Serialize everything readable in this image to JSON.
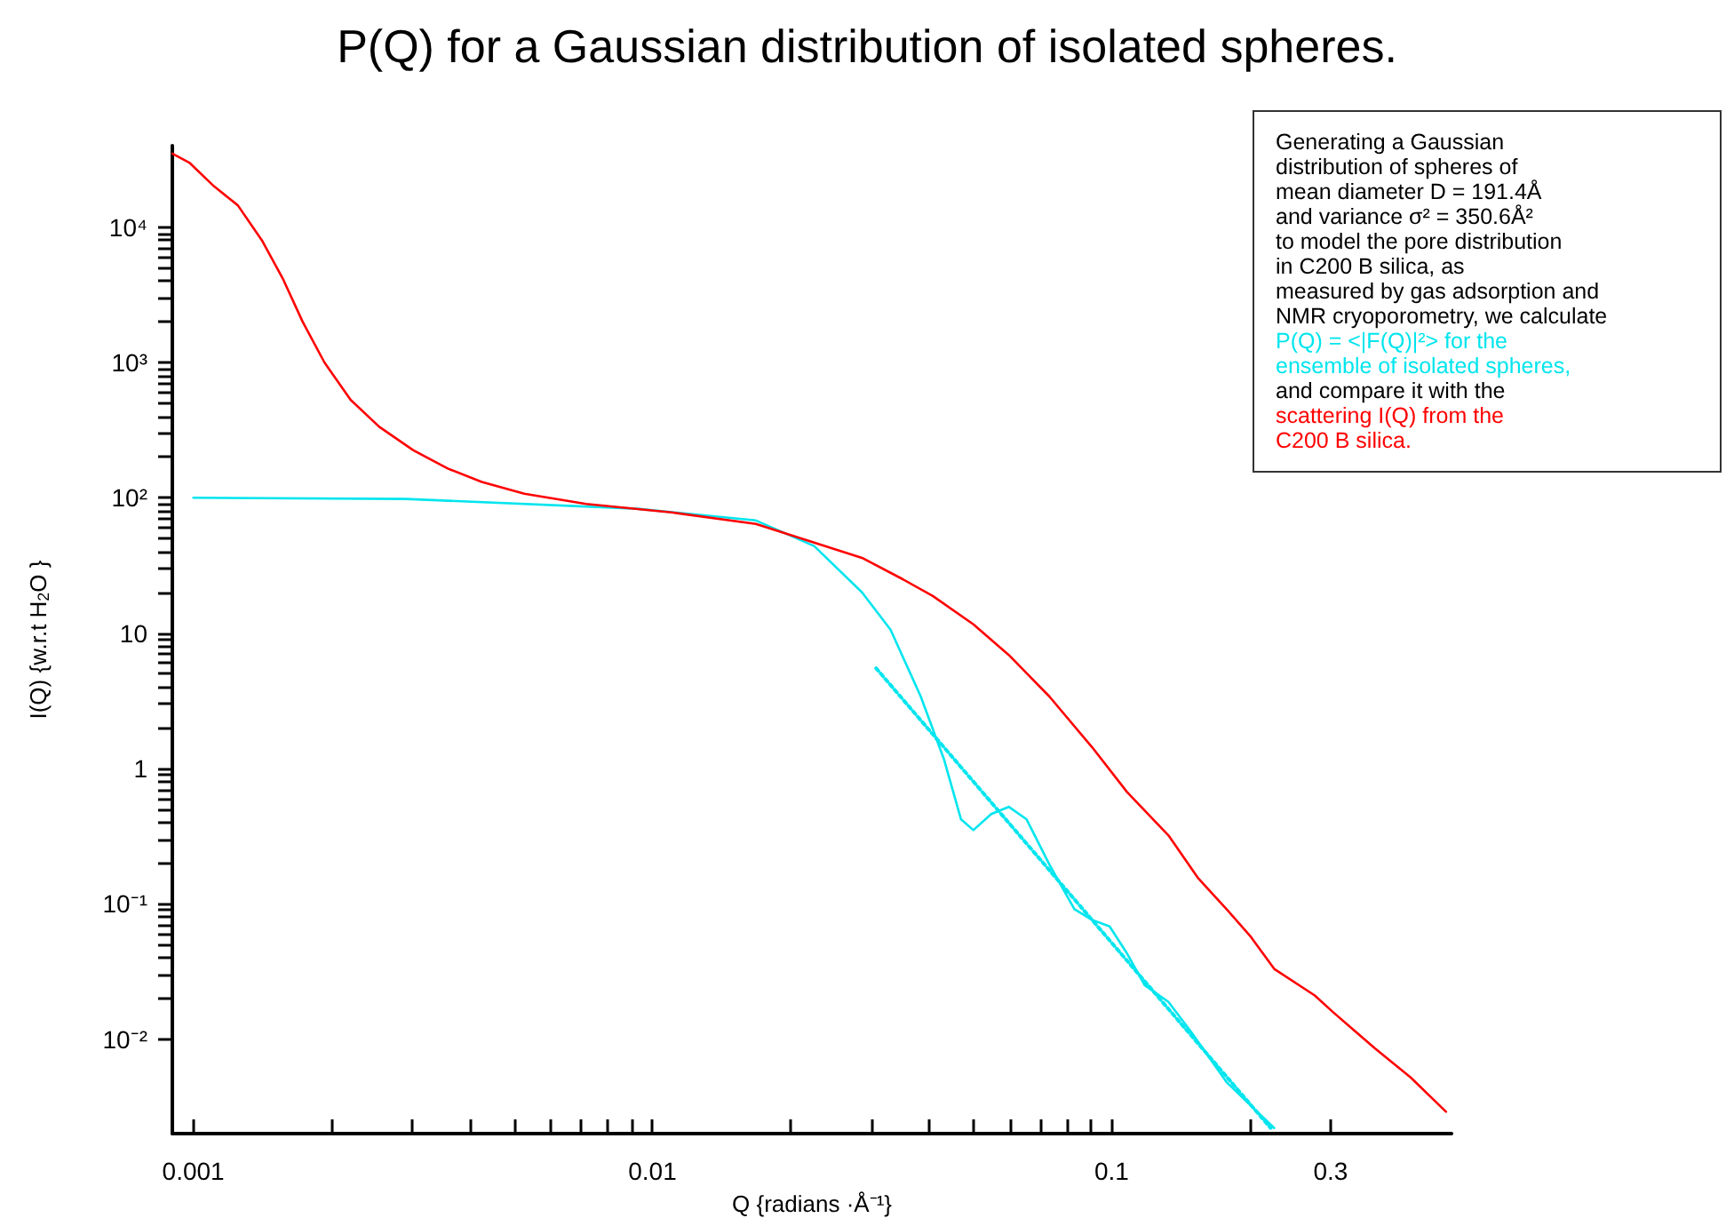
{
  "chart_data": {
    "type": "line",
    "title": "P(Q) for a Gaussian distribution of isolated spheres.",
    "xlabel": "Q {radians ·Å⁻¹}",
    "ylabel": "I(Q) {w.r.t H$_{2}$O }",
    "log": "xy",
    "grid": false,
    "marker": "none",
    "xlim": [
      0.0009,
      0.55
    ],
    "xticks": [
      0.001,
      {
        "value": 0.002,
        "label": null
      },
      {
        "value": 0.003,
        "label": null
      },
      {
        "value": 0.004,
        "label": null
      },
      {
        "value": 0.005,
        "label": null
      },
      {
        "value": 0.006,
        "label": null
      },
      {
        "value": 0.007,
        "label": null
      },
      {
        "value": 0.008,
        "label": null
      },
      {
        "value": 0.009,
        "label": null
      },
      0.01,
      {
        "value": 0.02,
        "label": null
      },
      {
        "value": 0.03,
        "label": null
      },
      {
        "value": 0.04,
        "label": null
      },
      {
        "value": 0.05,
        "label": null
      },
      {
        "value": 0.06,
        "label": null
      },
      {
        "value": 0.07,
        "label": null
      },
      {
        "value": 0.08,
        "label": null
      },
      {
        "value": 0.09,
        "label": null
      },
      0.1,
      {
        "value": 0.2,
        "label": null
      },
      0.3
    ],
    "ylim": [
      0.002,
      40000
    ],
    "yticks": [
      {
        "value": 0.01,
        "label": "10⁻²"
      },
      {
        "value": 0.02,
        "label": null
      },
      {
        "value": 0.03,
        "label": null
      },
      {
        "value": 0.04,
        "label": null
      },
      {
        "value": 0.05,
        "label": null
      },
      {
        "value": 0.06,
        "label": null
      },
      {
        "value": 0.07,
        "label": null
      },
      {
        "value": 0.08,
        "label": null
      },
      {
        "value": 0.09,
        "label": null
      },
      {
        "value": 0.1,
        "label": "10⁻¹"
      },
      {
        "value": 0.2,
        "label": null
      },
      {
        "value": 0.3,
        "label": null
      },
      {
        "value": 0.4,
        "label": null
      },
      {
        "value": 0.5,
        "label": null
      },
      {
        "value": 0.6,
        "label": null
      },
      {
        "value": 0.7,
        "label": null
      },
      {
        "value": 0.8,
        "label": null
      },
      {
        "value": 0.9,
        "label": null
      },
      1,
      {
        "value": 2,
        "label": null
      },
      {
        "value": 3,
        "label": null
      },
      {
        "value": 4,
        "label": null
      },
      {
        "value": 5,
        "label": null
      },
      {
        "value": 6,
        "label": null
      },
      {
        "value": 7,
        "label": null
      },
      {
        "value": 8,
        "label": null
      },
      {
        "value": 9,
        "label": null
      },
      10,
      {
        "value": 20,
        "label": null
      },
      {
        "value": 30,
        "label": null
      },
      {
        "value": 40,
        "label": null
      },
      {
        "value": 50,
        "label": null
      },
      {
        "value": 60,
        "label": null
      },
      {
        "value": 70,
        "label": null
      },
      {
        "value": 80,
        "label": null
      },
      {
        "value": 90,
        "label": null
      },
      {
        "value": 100,
        "label": "10²"
      },
      {
        "value": 200,
        "label": null
      },
      {
        "value": 300,
        "label": null
      },
      {
        "value": 400,
        "label": null
      },
      {
        "value": 500,
        "label": null
      },
      {
        "value": 600,
        "label": null
      },
      {
        "value": 700,
        "label": null
      },
      {
        "value": 800,
        "label": null
      },
      {
        "value": 900,
        "label": null
      },
      {
        "value": 1000,
        "label": "10³"
      },
      {
        "value": 2000,
        "label": null
      },
      {
        "value": 3000,
        "label": null
      },
      {
        "value": 4000,
        "label": null
      },
      {
        "value": 5000,
        "label": null
      },
      {
        "value": 6000,
        "label": null
      },
      {
        "value": 7000,
        "label": null
      },
      {
        "value": 8000,
        "label": null
      },
      {
        "value": 9000,
        "label": null
      },
      {
        "value": 10000,
        "label": "10⁴"
      }
    ],
    "series": [
      {
        "color": "#00e5ee",
        "line_style": "solid",
        "x": [
          0.001,
          0.0029,
          0.00927,
          0.0168,
          0.0225,
          0.0286,
          0.033,
          0.0384,
          0.0431,
          0.047,
          0.05,
          0.0547,
          0.0597,
          0.0653,
          0.0732,
          0.083,
          0.0906,
          0.099,
          0.108,
          0.118,
          0.133,
          0.149,
          0.178,
          0.226
        ],
        "values": [
          100,
          98,
          83,
          68,
          44,
          20,
          10.6,
          3.4,
          1.18,
          0.42,
          0.35,
          0.46,
          0.52,
          0.42,
          0.195,
          0.091,
          0.076,
          0.068,
          0.043,
          0.025,
          0.0188,
          0.0113,
          0.0048,
          0.0022
        ]
      },
      {
        "color": "#ff0000",
        "line_style": "solid",
        "x": [
          0.0009,
          0.00098,
          0.00111,
          0.00125,
          0.00141,
          0.00157,
          0.00173,
          0.00193,
          0.0022,
          0.00254,
          0.00301,
          0.00359,
          0.00425,
          0.00526,
          0.00717,
          0.011,
          0.0168,
          0.0286,
          0.0351,
          0.0408,
          0.05,
          0.0597,
          0.0732,
          0.0906,
          0.108,
          0.133,
          0.154,
          0.178,
          0.201,
          0.226,
          0.277,
          0.303,
          0.375,
          0.448,
          0.535
        ],
        "values": [
          35000,
          30000,
          20000,
          14500,
          8000,
          4100,
          2000,
          1000,
          530,
          335,
          225,
          164,
          131,
          107,
          90,
          78,
          64,
          36,
          25,
          18.8,
          11.6,
          6.9,
          3.4,
          1.44,
          0.67,
          0.32,
          0.156,
          0.091,
          0.057,
          0.033,
          0.021,
          0.0159,
          0.0085,
          0.0052,
          0.0029
        ]
      },
      {
        "color": "#00e5ee",
        "line_style": "dotted",
        "x": [
          0.0307,
          0.222
        ],
        "values": [
          5.5,
          0.0022
        ]
      }
    ],
    "annotations": [
      "Generating a Gaussian\ndistribution of spheres of\nmean diameter D = 191.4Å\nand variance  σ² = 350.6Å²\nto model the pore distribution\nin C200 B silica, as\nmeasured by gas adsorption and\nNMR cryoporometry, we calculate",
      "P(Q) = <|F(Q)|²> for the\nensemble of isolated spheres,",
      "and compare it with the",
      "scattering I(Q) from the\nC200 B silica."
    ]
  }
}
